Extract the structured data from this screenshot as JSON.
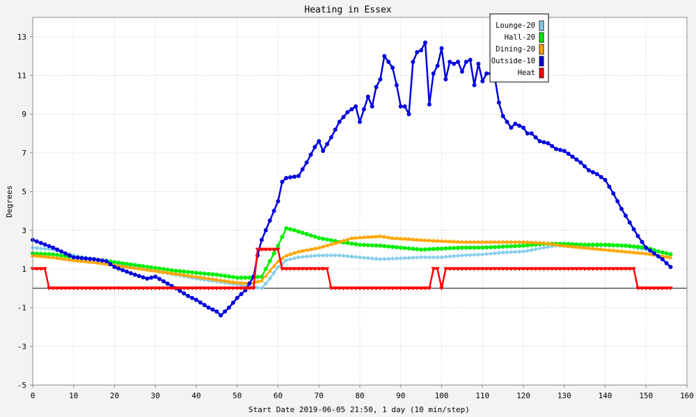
{
  "chart_data": {
    "type": "line",
    "title": "Heating in Essex",
    "xlabel": "Start Date 2019-06-05 21:50, 1 day (10 min/step)",
    "ylabel": "Degrees",
    "xlim": [
      0,
      160
    ],
    "ylim": [
      -5,
      14
    ],
    "x_ticks": [
      "0",
      "10",
      "20",
      "30",
      "40",
      "50",
      "60",
      "70",
      "80",
      "90",
      "100",
      "110",
      "120",
      "130",
      "140",
      "150",
      "160"
    ],
    "y_ticks": [
      "-5",
      "-3",
      "-1",
      "1",
      "3",
      "5",
      "7",
      "9",
      "11",
      "13"
    ],
    "grid": true,
    "legend_position": "top-right",
    "series": [
      {
        "name": "Lounge-20",
        "color": "#87ceeb",
        "marker": "diamond",
        "points": [
          [
            0,
            2.1
          ],
          [
            5,
            2.0
          ],
          [
            10,
            1.7
          ],
          [
            15,
            1.5
          ],
          [
            20,
            1.3
          ],
          [
            25,
            1.1
          ],
          [
            30,
            0.9
          ],
          [
            35,
            0.7
          ],
          [
            40,
            0.5
          ],
          [
            45,
            0.35
          ],
          [
            50,
            0.2
          ],
          [
            53,
            0.1
          ],
          [
            56,
            0.0
          ],
          [
            58,
            0.5
          ],
          [
            60,
            1.1
          ],
          [
            62,
            1.45
          ],
          [
            65,
            1.6
          ],
          [
            70,
            1.7
          ],
          [
            75,
            1.7
          ],
          [
            80,
            1.6
          ],
          [
            85,
            1.5
          ],
          [
            90,
            1.55
          ],
          [
            95,
            1.6
          ],
          [
            100,
            1.6
          ],
          [
            105,
            1.7
          ],
          [
            110,
            1.75
          ],
          [
            115,
            1.85
          ],
          [
            120,
            1.9
          ],
          [
            125,
            2.1
          ],
          [
            128,
            2.2
          ],
          [
            132,
            2.2
          ],
          [
            140,
            2.2
          ],
          [
            145,
            2.2
          ],
          [
            150,
            2.0
          ],
          [
            153,
            1.9
          ],
          [
            156,
            1.8
          ]
        ]
      },
      {
        "name": "Hall-20",
        "color": "#00ee00",
        "marker": "circle",
        "points": [
          [
            0,
            1.8
          ],
          [
            5,
            1.75
          ],
          [
            10,
            1.6
          ],
          [
            15,
            1.5
          ],
          [
            20,
            1.35
          ],
          [
            25,
            1.2
          ],
          [
            30,
            1.05
          ],
          [
            35,
            0.9
          ],
          [
            40,
            0.8
          ],
          [
            45,
            0.7
          ],
          [
            50,
            0.55
          ],
          [
            53,
            0.55
          ],
          [
            56,
            0.6
          ],
          [
            58,
            1.4
          ],
          [
            60,
            2.2
          ],
          [
            62,
            3.1
          ],
          [
            64,
            3.0
          ],
          [
            67,
            2.8
          ],
          [
            70,
            2.6
          ],
          [
            75,
            2.4
          ],
          [
            80,
            2.25
          ],
          [
            85,
            2.2
          ],
          [
            90,
            2.1
          ],
          [
            95,
            2.0
          ],
          [
            100,
            2.05
          ],
          [
            105,
            2.1
          ],
          [
            110,
            2.1
          ],
          [
            115,
            2.15
          ],
          [
            120,
            2.2
          ],
          [
            125,
            2.3
          ],
          [
            130,
            2.3
          ],
          [
            135,
            2.25
          ],
          [
            140,
            2.25
          ],
          [
            145,
            2.2
          ],
          [
            150,
            2.1
          ],
          [
            153,
            1.9
          ],
          [
            156,
            1.75
          ]
        ]
      },
      {
        "name": "Dining-20",
        "color": "#ffa500",
        "marker": "triangle",
        "points": [
          [
            0,
            1.7
          ],
          [
            5,
            1.6
          ],
          [
            10,
            1.45
          ],
          [
            15,
            1.35
          ],
          [
            20,
            1.2
          ],
          [
            25,
            1.05
          ],
          [
            30,
            0.9
          ],
          [
            35,
            0.75
          ],
          [
            40,
            0.6
          ],
          [
            45,
            0.45
          ],
          [
            50,
            0.3
          ],
          [
            53,
            0.25
          ],
          [
            56,
            0.4
          ],
          [
            58,
            0.9
          ],
          [
            60,
            1.4
          ],
          [
            62,
            1.7
          ],
          [
            65,
            1.9
          ],
          [
            70,
            2.1
          ],
          [
            75,
            2.4
          ],
          [
            78,
            2.6
          ],
          [
            85,
            2.7
          ],
          [
            88,
            2.6
          ],
          [
            92,
            2.55
          ],
          [
            95,
            2.5
          ],
          [
            100,
            2.45
          ],
          [
            105,
            2.4
          ],
          [
            110,
            2.4
          ],
          [
            115,
            2.4
          ],
          [
            120,
            2.4
          ],
          [
            125,
            2.35
          ],
          [
            130,
            2.2
          ],
          [
            135,
            2.1
          ],
          [
            140,
            2.0
          ],
          [
            145,
            1.9
          ],
          [
            150,
            1.8
          ],
          [
            153,
            1.7
          ],
          [
            156,
            1.6
          ]
        ]
      },
      {
        "name": "Outside-10",
        "color": "#0000dd",
        "marker": "circle",
        "points": [
          [
            0,
            2.5
          ],
          [
            5,
            2.1
          ],
          [
            10,
            1.6
          ],
          [
            15,
            1.5
          ],
          [
            18,
            1.4
          ],
          [
            20,
            1.1
          ],
          [
            25,
            0.7
          ],
          [
            28,
            0.5
          ],
          [
            30,
            0.6
          ],
          [
            35,
            0.0
          ],
          [
            38,
            -0.4
          ],
          [
            40,
            -0.6
          ],
          [
            43,
            -1.0
          ],
          [
            45,
            -1.2
          ],
          [
            46,
            -1.4
          ],
          [
            48,
            -1.0
          ],
          [
            50,
            -0.5
          ],
          [
            52,
            -0.1
          ],
          [
            54,
            0.6
          ],
          [
            55,
            1.7
          ],
          [
            56,
            2.5
          ],
          [
            58,
            3.5
          ],
          [
            60,
            4.5
          ],
          [
            61,
            5.5
          ],
          [
            62,
            5.7
          ],
          [
            65,
            5.8
          ],
          [
            67,
            6.5
          ],
          [
            69,
            7.3
          ],
          [
            70,
            7.6
          ],
          [
            71,
            7.1
          ],
          [
            73,
            7.8
          ],
          [
            75,
            8.6
          ],
          [
            77,
            9.1
          ],
          [
            79,
            9.4
          ],
          [
            80,
            8.6
          ],
          [
            82,
            9.9
          ],
          [
            83,
            9.4
          ],
          [
            84,
            10.4
          ],
          [
            85,
            10.8
          ],
          [
            86,
            12.0
          ],
          [
            87,
            11.7
          ],
          [
            88,
            11.4
          ],
          [
            89,
            10.5
          ],
          [
            90,
            9.4
          ],
          [
            91,
            9.4
          ],
          [
            92,
            9.0
          ],
          [
            93,
            11.7
          ],
          [
            94,
            12.2
          ],
          [
            95,
            12.3
          ],
          [
            96,
            12.7
          ],
          [
            97,
            9.5
          ],
          [
            98,
            11.1
          ],
          [
            99,
            11.5
          ],
          [
            100,
            12.4
          ],
          [
            101,
            10.8
          ],
          [
            102,
            11.7
          ],
          [
            103,
            11.6
          ],
          [
            104,
            11.7
          ],
          [
            105,
            11.2
          ],
          [
            106,
            11.7
          ],
          [
            107,
            11.8
          ],
          [
            108,
            10.5
          ],
          [
            109,
            11.6
          ],
          [
            110,
            10.7
          ],
          [
            111,
            11.1
          ],
          [
            112,
            11.1
          ],
          [
            113,
            10.9
          ],
          [
            114,
            9.6
          ],
          [
            115,
            8.9
          ],
          [
            116,
            8.6
          ],
          [
            117,
            8.3
          ],
          [
            118,
            8.5
          ],
          [
            120,
            8.3
          ],
          [
            121,
            8.0
          ],
          [
            122,
            8.0
          ],
          [
            124,
            7.6
          ],
          [
            126,
            7.5
          ],
          [
            128,
            7.2
          ],
          [
            130,
            7.1
          ],
          [
            132,
            6.8
          ],
          [
            134,
            6.5
          ],
          [
            136,
            6.1
          ],
          [
            138,
            5.9
          ],
          [
            140,
            5.6
          ],
          [
            142,
            4.9
          ],
          [
            144,
            4.1
          ],
          [
            146,
            3.4
          ],
          [
            148,
            2.7
          ],
          [
            150,
            2.1
          ],
          [
            152,
            1.8
          ],
          [
            154,
            1.5
          ],
          [
            156,
            1.1
          ]
        ]
      },
      {
        "name": "Heat",
        "color": "#ff0000",
        "marker": "triangle-down",
        "points": [
          [
            0,
            1.0
          ],
          [
            3,
            1.0
          ],
          [
            4,
            0.0
          ],
          [
            54,
            0.0
          ],
          [
            55,
            2.0
          ],
          [
            60,
            2.0
          ],
          [
            61,
            1.0
          ],
          [
            72,
            1.0
          ],
          [
            73,
            0.0
          ],
          [
            97,
            0.0
          ],
          [
            98,
            1.0
          ],
          [
            99,
            1.0
          ],
          [
            100,
            0.0
          ],
          [
            101,
            1.0
          ],
          [
            147,
            1.0
          ],
          [
            148,
            0.0
          ],
          [
            156,
            0.0
          ]
        ]
      }
    ]
  }
}
